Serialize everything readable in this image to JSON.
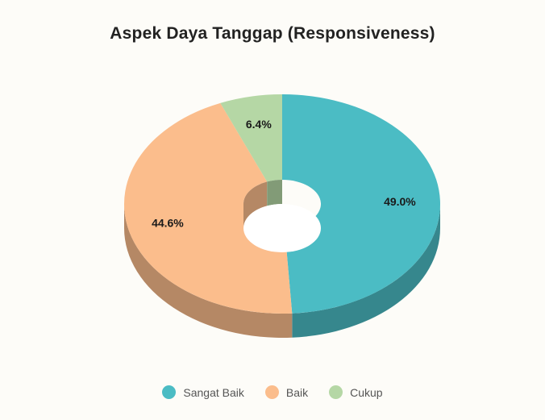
{
  "chart_data": {
    "type": "pie",
    "title": "Aspek Daya Tanggap (Responsiveness)",
    "categories": [
      "Sangat Baik",
      "Baik",
      "Cukup"
    ],
    "values": [
      49.0,
      44.6,
      6.4
    ],
    "labels": [
      "49.0%",
      "44.6%",
      "6.4%"
    ],
    "colors": [
      "#4bbcc4",
      "#fbbd8c",
      "#b5d7a5"
    ],
    "style": "3d-donut",
    "legend": "bottom"
  }
}
